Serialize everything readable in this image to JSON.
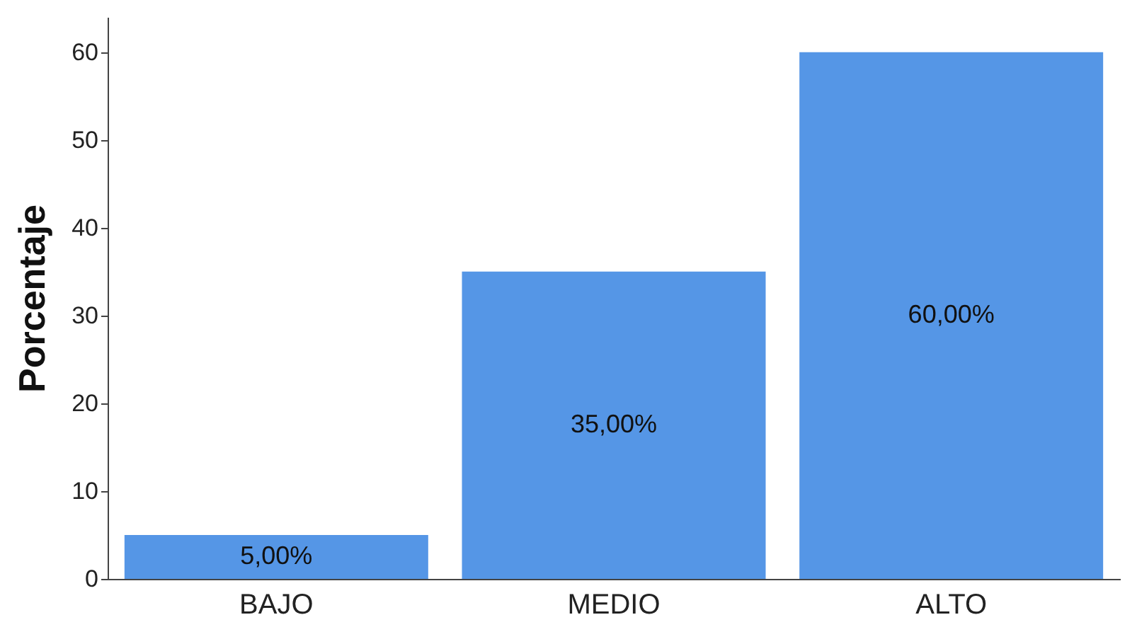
{
  "chart_data": {
    "type": "bar",
    "ylabel": "Porcentaje",
    "categories": [
      "BAJO",
      "MEDIO",
      "ALTO"
    ],
    "series": [
      {
        "color": "#5596e6",
        "values": [
          5,
          35,
          60
        ]
      }
    ],
    "value_labels": [
      "5,00%",
      "35,00%",
      "60,00%"
    ],
    "ylim": [
      0,
      64
    ],
    "yticks": [
      0,
      10,
      20,
      30,
      40,
      50,
      60
    ],
    "grid": false
  }
}
